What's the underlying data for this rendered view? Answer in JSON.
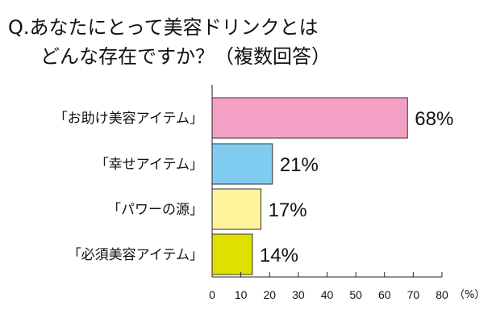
{
  "chart_data": {
    "type": "bar",
    "orientation": "horizontal",
    "title_lines": [
      "Q.あなたにとって美容ドリンクとは",
      "どんな存在ですか？（複数回答）"
    ],
    "categories": [
      "「お助け美容アイテム」",
      "「幸せアイテム」",
      "「パワーの源」",
      "「必須美容アイテム」"
    ],
    "values": [
      68,
      21,
      17,
      14
    ],
    "value_labels": [
      "68%",
      "21%",
      "17%",
      "14%"
    ],
    "colors": [
      "#f3a0c4",
      "#80ccf0",
      "#fdf39b",
      "#dfe000"
    ],
    "xlim": [
      0,
      80
    ],
    "ticks": [
      0,
      10,
      20,
      30,
      40,
      50,
      60,
      70,
      80
    ],
    "unit_label": "（%）",
    "grid": false,
    "legend": "none"
  }
}
